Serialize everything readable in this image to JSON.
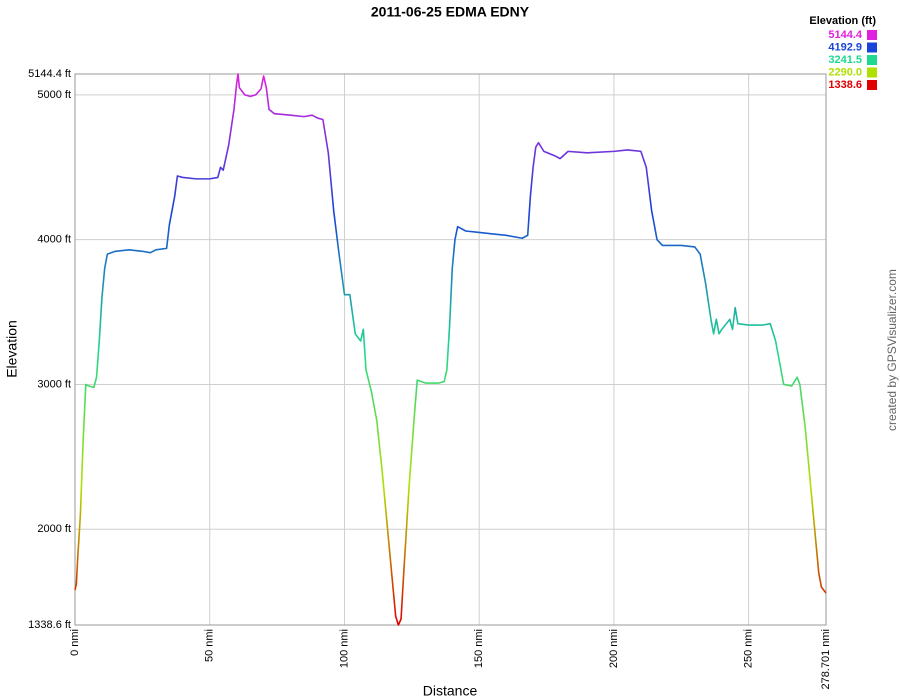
{
  "chart_data": {
    "type": "line",
    "title": "2011-06-25 EDMA EDNY",
    "x_label": "Distance",
    "y_label": "Elevation",
    "credit": "created by GPSVisualizer.com",
    "legend_title": "Elevation (ft)",
    "color_scale": {
      "values": [
        5144.4,
        4192.9,
        3241.5,
        2290.0,
        1338.6
      ],
      "value_labels": [
        "5144.4",
        "4192.9",
        "3241.5",
        "2290.0",
        "1338.6"
      ],
      "colors": [
        "#e020e0",
        "#1844d8",
        "#20d890",
        "#b0e000",
        "#e00000"
      ]
    },
    "x": [
      0,
      0.5,
      1,
      2,
      3,
      4,
      5,
      7,
      8,
      9,
      10,
      11,
      12,
      15,
      20,
      25,
      28,
      30,
      34,
      35,
      37,
      38,
      40,
      45,
      50,
      53,
      54,
      55,
      57,
      59,
      60,
      60.5,
      61,
      63,
      65,
      67,
      69,
      70,
      71,
      72,
      74,
      80,
      85,
      88,
      90,
      92,
      94,
      96,
      98,
      100,
      102,
      104,
      106,
      107,
      108,
      110,
      112,
      114,
      116,
      118,
      119,
      120,
      121,
      122,
      124,
      126,
      127,
      130,
      135,
      137,
      138,
      139,
      140,
      141,
      142,
      145,
      150,
      155,
      160,
      166,
      168,
      169,
      170,
      171,
      172,
      174,
      178,
      180,
      183,
      190,
      200,
      205,
      210,
      212,
      214,
      216,
      218,
      225,
      230,
      232,
      234,
      236,
      237,
      238,
      239,
      240,
      243,
      244,
      245,
      246,
      250,
      255,
      258,
      260,
      262,
      263,
      266,
      268,
      269,
      271,
      272,
      273,
      274,
      275,
      276,
      277,
      278.701
    ],
    "values": [
      1580,
      1620,
      1800,
      2100,
      2600,
      3000,
      2990,
      2980,
      3050,
      3300,
      3600,
      3800,
      3900,
      3920,
      3930,
      3920,
      3910,
      3930,
      3940,
      4100,
      4300,
      4440,
      4430,
      4420,
      4420,
      4430,
      4500,
      4480,
      4650,
      4900,
      5080,
      5144.4,
      5050,
      5000,
      4990,
      5000,
      5040,
      5130,
      5050,
      4900,
      4870,
      4860,
      4850,
      4860,
      4840,
      4830,
      4600,
      4200,
      3900,
      3620,
      3620,
      3350,
      3300,
      3380,
      3100,
      2950,
      2750,
      2400,
      2000,
      1600,
      1400,
      1338.6,
      1380,
      1700,
      2300,
      2800,
      3030,
      3010,
      3010,
      3020,
      3100,
      3400,
      3800,
      4000,
      4090,
      4060,
      4050,
      4040,
      4030,
      4010,
      4030,
      4300,
      4500,
      4640,
      4670,
      4610,
      4580,
      4560,
      4610,
      4600,
      4610,
      4620,
      4610,
      4500,
      4200,
      4000,
      3960,
      3960,
      3950,
      3900,
      3700,
      3450,
      3350,
      3450,
      3350,
      3380,
      3450,
      3380,
      3530,
      3420,
      3410,
      3410,
      3420,
      3300,
      3100,
      3000,
      2990,
      3050,
      3000,
      2700,
      2500,
      2300,
      2100,
      1900,
      1700,
      1600,
      1560
    ],
    "xlim": [
      0,
      278.701
    ],
    "ylim": [
      1338.6,
      5144.4
    ],
    "xticks": [
      {
        "value": 0,
        "label": "0 nmi"
      },
      {
        "value": 50,
        "label": "50 nmi"
      },
      {
        "value": 100,
        "label": "100 nmi"
      },
      {
        "value": 150,
        "label": "150 nmi"
      },
      {
        "value": 200,
        "label": "200 nmi"
      },
      {
        "value": 250,
        "label": "250 nmi"
      },
      {
        "value": 278.701,
        "label": "278.701 nmi"
      }
    ],
    "yticks": [
      {
        "value": 1338.6,
        "label": "1338.6 ft"
      },
      {
        "value": 2000,
        "label": "2000 ft"
      },
      {
        "value": 3000,
        "label": "3000 ft"
      },
      {
        "value": 4000,
        "label": "4000 ft"
      },
      {
        "value": 5000,
        "label": "5000 ft"
      },
      {
        "value": 5144.4,
        "label": "5144.4 ft"
      }
    ],
    "grid": true
  }
}
